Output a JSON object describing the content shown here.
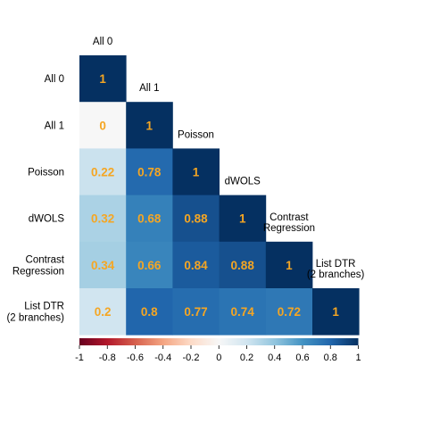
{
  "chart_data": {
    "type": "heatmap",
    "variables": [
      [
        "All 0"
      ],
      [
        "All 1"
      ],
      [
        "Poisson"
      ],
      [
        "dWOLS"
      ],
      [
        "Contrast",
        "Regression"
      ],
      [
        "List DTR",
        "(2 branches)"
      ]
    ],
    "matrix": [
      [
        1
      ],
      [
        0,
        1
      ],
      [
        0.22,
        0.78,
        1
      ],
      [
        0.32,
        0.68,
        0.88,
        1
      ],
      [
        0.34,
        0.66,
        0.84,
        0.88,
        1
      ],
      [
        0.2,
        0.8,
        0.77,
        0.74,
        0.72,
        1
      ]
    ],
    "value_labels": [
      [
        "1"
      ],
      [
        "0",
        "1"
      ],
      [
        "0.22",
        "0.78",
        "1"
      ],
      [
        "0.32",
        "0.68",
        "0.88",
        "1"
      ],
      [
        "0.34",
        "0.66",
        "0.84",
        "0.88",
        "1"
      ],
      [
        "0.2",
        "0.8",
        "0.77",
        "0.74",
        "0.72",
        "1"
      ]
    ],
    "layout": "lower-triangle",
    "colorbar": {
      "range": [
        -1,
        1
      ],
      "ticks": [
        "-1",
        "-0.8",
        "-0.6",
        "-0.4",
        "-0.2",
        "0",
        "0.2",
        "0.4",
        "0.6",
        "0.8",
        "1"
      ],
      "colors": [
        "#67001f",
        "#b2182b",
        "#d6604d",
        "#f4a582",
        "#fddbc7",
        "#f7f7f7",
        "#d1e5f0",
        "#92c5de",
        "#4393c3",
        "#2166ac",
        "#053061"
      ],
      "placement": "bottom"
    },
    "value_label_color": "#f5a623",
    "title": "",
    "xlabel": "",
    "ylabel": ""
  }
}
